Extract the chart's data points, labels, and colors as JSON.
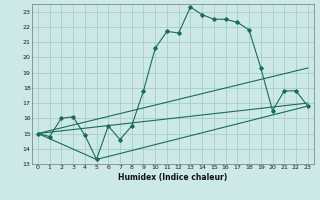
{
  "xlabel": "Humidex (Indice chaleur)",
  "background_color": "#cce8e8",
  "grid_color": "#aacccc",
  "line_color": "#1a6b5a",
  "xlim": [
    -0.5,
    23.5
  ],
  "ylim": [
    13,
    23.5
  ],
  "xticks": [
    0,
    1,
    2,
    3,
    4,
    5,
    6,
    7,
    8,
    9,
    10,
    11,
    12,
    13,
    14,
    15,
    16,
    17,
    18,
    19,
    20,
    21,
    22,
    23
  ],
  "yticks": [
    13,
    14,
    15,
    16,
    17,
    18,
    19,
    20,
    21,
    22,
    23
  ],
  "series1_x": [
    0,
    1,
    2,
    3,
    4,
    5,
    6,
    7,
    8,
    9,
    10,
    11,
    12,
    13,
    14,
    15,
    16,
    17,
    18,
    19,
    20,
    21,
    22,
    23
  ],
  "series1_y": [
    15.0,
    14.8,
    16.0,
    16.1,
    14.9,
    13.3,
    15.5,
    14.6,
    15.5,
    17.8,
    20.6,
    21.7,
    21.6,
    23.3,
    22.8,
    22.5,
    22.5,
    22.3,
    21.8,
    19.3,
    16.5,
    17.8,
    17.8,
    16.8
  ],
  "series2_x": [
    0,
    5,
    23
  ],
  "series2_y": [
    15.0,
    13.3,
    16.8
  ],
  "series3_x": [
    0,
    23
  ],
  "series3_y": [
    15.0,
    19.3
  ],
  "series4_x": [
    0,
    23
  ],
  "series4_y": [
    15.0,
    17.0
  ],
  "tick_labelsize": 4.5,
  "xlabel_fontsize": 5.5
}
